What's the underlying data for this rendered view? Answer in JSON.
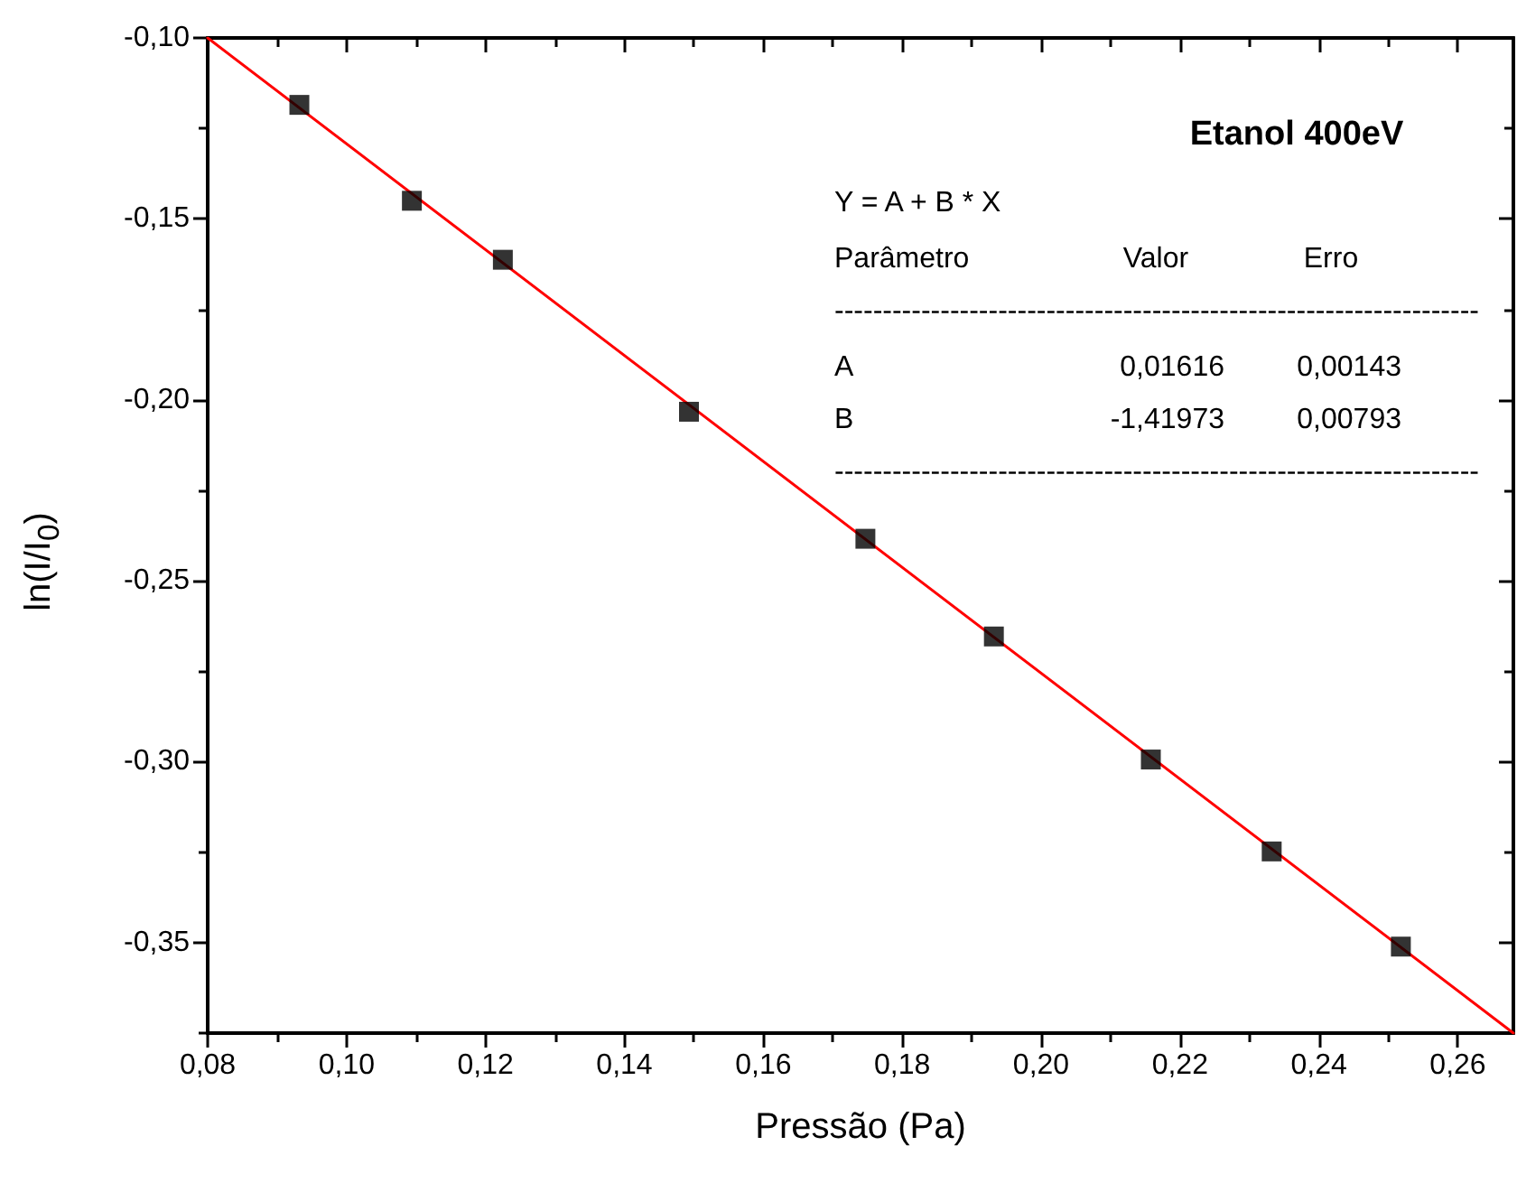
{
  "chart_data": {
    "type": "scatter",
    "title": "Etanol 400eV",
    "xlabel": "Pressão (Pa)",
    "ylabel": "ln(I/I$_{0}$)",
    "xlim": [
      0.08,
      0.268
    ],
    "ylim": [
      -0.375,
      -0.1
    ],
    "xticks": [
      {
        "value": 0.08,
        "label": "0,08"
      },
      {
        "value": 0.1,
        "label": "0,10"
      },
      {
        "value": 0.12,
        "label": "0,12"
      },
      {
        "value": 0.14,
        "label": "0,14"
      },
      {
        "value": 0.16,
        "label": "0,16"
      },
      {
        "value": 0.18,
        "label": "0,18"
      },
      {
        "value": 0.2,
        "label": "0,20"
      },
      {
        "value": 0.22,
        "label": "0,22"
      },
      {
        "value": 0.24,
        "label": "0,24"
      },
      {
        "value": 0.26,
        "label": "0,26"
      }
    ],
    "yticks": [
      {
        "value": -0.1,
        "label": "-0,10"
      },
      {
        "value": -0.15,
        "label": "-0,15"
      },
      {
        "value": -0.2,
        "label": "-0,20"
      },
      {
        "value": -0.25,
        "label": "-0,25"
      },
      {
        "value": -0.3,
        "label": "-0,30"
      },
      {
        "value": -0.35,
        "label": "-0,35"
      }
    ],
    "marker": "square",
    "series": [
      {
        "type": "scatter",
        "color": "#000000",
        "x": [
          0.0932,
          0.1094,
          0.1225,
          0.1493,
          0.1747,
          0.1932,
          0.2158,
          0.2332,
          0.2518
        ],
        "values": [
          -0.1185,
          -0.145,
          -0.1613,
          -0.2033,
          -0.2384,
          -0.2654,
          -0.2994,
          -0.3248,
          -0.3511
        ]
      },
      {
        "type": "line",
        "color": "#ff0000",
        "marker": "none",
        "line_style": "solid",
        "x": [
          0.08,
          0.268
        ],
        "values": [
          -0.1,
          -0.375
        ]
      }
    ],
    "annotations": [
      "Y = A + B * X",
      "Parâmetro",
      "Valor",
      "Erro",
      "-------------------------------------------------------------------",
      "A",
      "0,01616",
      "0,00143",
      "B",
      "-1,41973",
      "0,00793",
      "-------------------------------------------------------------------"
    ]
  }
}
